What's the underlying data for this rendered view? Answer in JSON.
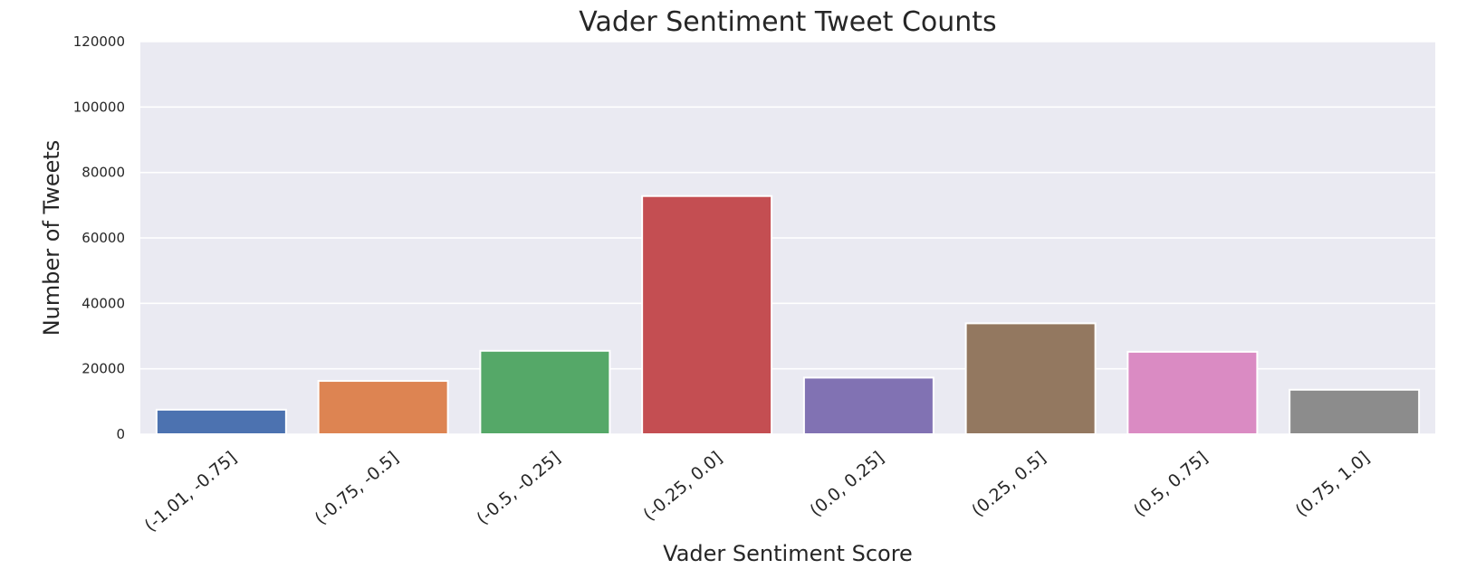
{
  "chart_data": {
    "type": "bar",
    "title": "Vader Sentiment Tweet Counts",
    "xlabel": "Vader Sentiment Score",
    "ylabel": "Number of Tweets",
    "categories": [
      "(-1.01, -0.75]",
      "(-0.75, -0.5]",
      "(-0.5, -0.25]",
      "(-0.25, 0.0]",
      "(0.0, 0.25]",
      "(0.25, 0.5]",
      "(0.5, 0.75]",
      "(0.75, 1.0]"
    ],
    "values": [
      7500,
      16300,
      25500,
      72800,
      17300,
      33900,
      25200,
      13600
    ],
    "colors": [
      "#4c72b0",
      "#dd8452",
      "#55a868",
      "#c44e52",
      "#8172b3",
      "#937860",
      "#da8bc3",
      "#8c8c8c"
    ],
    "ylim": [
      0,
      120000
    ],
    "yticks": [
      0,
      20000,
      40000,
      60000,
      80000,
      100000,
      120000
    ],
    "grid": true,
    "background": "#eaeaf2"
  }
}
